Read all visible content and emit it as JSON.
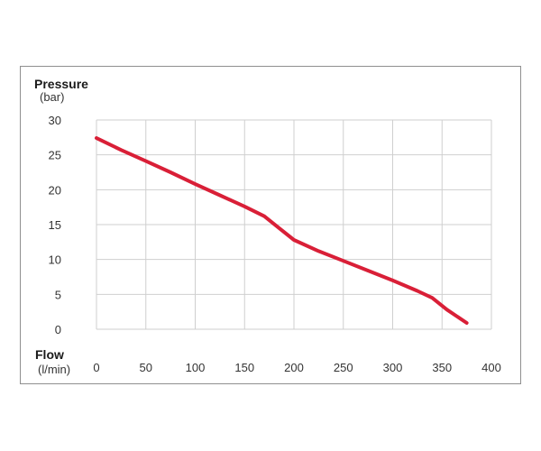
{
  "chart_data": {
    "type": "line",
    "ylabel": "Pressure",
    "yunit": "(bar)",
    "xlabel": "Flow",
    "xunit": "(l/min)",
    "xlim": [
      0,
      400
    ],
    "ylim": [
      0,
      30
    ],
    "xticks": [
      0,
      50,
      100,
      150,
      200,
      250,
      300,
      350,
      400
    ],
    "yticks": [
      0,
      5,
      10,
      15,
      20,
      25,
      30
    ],
    "grid": true,
    "line_color": "#d91f37",
    "grid_color": "#cfcfcf",
    "series": [
      {
        "x": [
          0,
          25,
          50,
          75,
          100,
          125,
          150,
          170,
          185,
          200,
          225,
          250,
          275,
          300,
          325,
          340,
          355,
          375
        ],
        "y": [
          27.4,
          25.7,
          24.1,
          22.5,
          20.8,
          19.2,
          17.6,
          16.2,
          14.5,
          12.8,
          11.2,
          9.8,
          8.4,
          7.0,
          5.5,
          4.5,
          2.8,
          0.9
        ]
      }
    ]
  }
}
